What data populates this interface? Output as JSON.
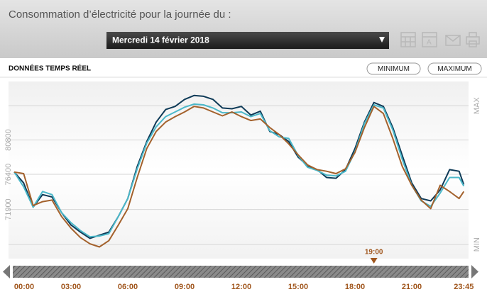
{
  "header": {
    "title": "Consommation d’électricité pour la journée du :",
    "date": "Mercredi 14 février 2018"
  },
  "section": "DONNÉES TEMPS RÉEL",
  "buttons": [
    "MINIMUM",
    "MAXIMUM"
  ],
  "chart_data": {
    "type": "line",
    "x": [
      0,
      0.5,
      1,
      1.5,
      2,
      2.5,
      3,
      3.5,
      4,
      4.5,
      5,
      5.5,
      6,
      6.5,
      7,
      7.5,
      8,
      8.5,
      9,
      9.5,
      10,
      10.5,
      11,
      11.5,
      12,
      12.5,
      13,
      13.5,
      14,
      14.5,
      15,
      15.5,
      16,
      16.5,
      17,
      17.5,
      18,
      18.5,
      19,
      19.5,
      20,
      20.5,
      21,
      21.5,
      22,
      22.5,
      23,
      23.5,
      23.75
    ],
    "series": [
      {
        "color": "#0e3a57",
        "values": [
          76700,
          75300,
          72200,
          73800,
          73500,
          71500,
          69900,
          69000,
          68200,
          68600,
          69000,
          71000,
          73300,
          77400,
          80600,
          83100,
          84700,
          85100,
          86000,
          86500,
          86400,
          86000,
          84900,
          84800,
          85100,
          84000,
          84500,
          81900,
          81500,
          80600,
          78600,
          77500,
          77000,
          76000,
          75900,
          77000,
          79700,
          83100,
          85600,
          85100,
          82400,
          78800,
          75300,
          73300,
          73000,
          74400,
          77000,
          76800,
          75100
        ]
      },
      {
        "color": "#4bb8c9",
        "values": [
          76700,
          74800,
          72200,
          74200,
          73800,
          71500,
          70200,
          69200,
          68400,
          68500,
          68800,
          71000,
          73300,
          77100,
          80400,
          82500,
          83800,
          84400,
          85000,
          85400,
          85300,
          84900,
          84300,
          84300,
          84400,
          83800,
          84200,
          82000,
          81200,
          81000,
          78800,
          77300,
          76900,
          76300,
          76200,
          76800,
          79300,
          82900,
          85300,
          84900,
          82100,
          78300,
          75000,
          73000,
          72300,
          74000,
          76000,
          76000,
          74900
        ]
      },
      {
        "color": "#a3612c",
        "values": [
          76700,
          76500,
          72400,
          72900,
          73100,
          71000,
          69500,
          68300,
          67500,
          67100,
          67900,
          69900,
          72000,
          76000,
          79700,
          81900,
          83100,
          83800,
          84400,
          85100,
          84900,
          84400,
          83900,
          84400,
          83800,
          83300,
          83500,
          82400,
          81500,
          80300,
          78900,
          77600,
          77000,
          76800,
          76500,
          77100,
          79200,
          82400,
          85100,
          84200,
          81000,
          77400,
          75000,
          73100,
          72000,
          75000,
          74200,
          73300,
          74200
        ]
      }
    ],
    "xlim": [
      0,
      24
    ],
    "xticks": [
      {
        "value": 0,
        "label": "00:00"
      },
      {
        "value": 3,
        "label": "03:00"
      },
      {
        "value": 6,
        "label": "06:00"
      },
      {
        "value": 9,
        "label": "09:00"
      },
      {
        "value": 12,
        "label": "12:00"
      },
      {
        "value": 15,
        "label": "15:00"
      },
      {
        "value": 18,
        "label": "18:00"
      },
      {
        "value": 21,
        "label": "21:00"
      },
      {
        "value": 23.75,
        "label": "23:45"
      }
    ],
    "ylim": [
      65600,
      88300
    ],
    "yticks": [
      {
        "value": 67400,
        "label": "MIN"
      },
      71900,
      76400,
      80800,
      {
        "value": 85200,
        "label": "MAX"
      }
    ],
    "grid": true,
    "cursor": {
      "x": 19,
      "label": "19:00"
    }
  }
}
